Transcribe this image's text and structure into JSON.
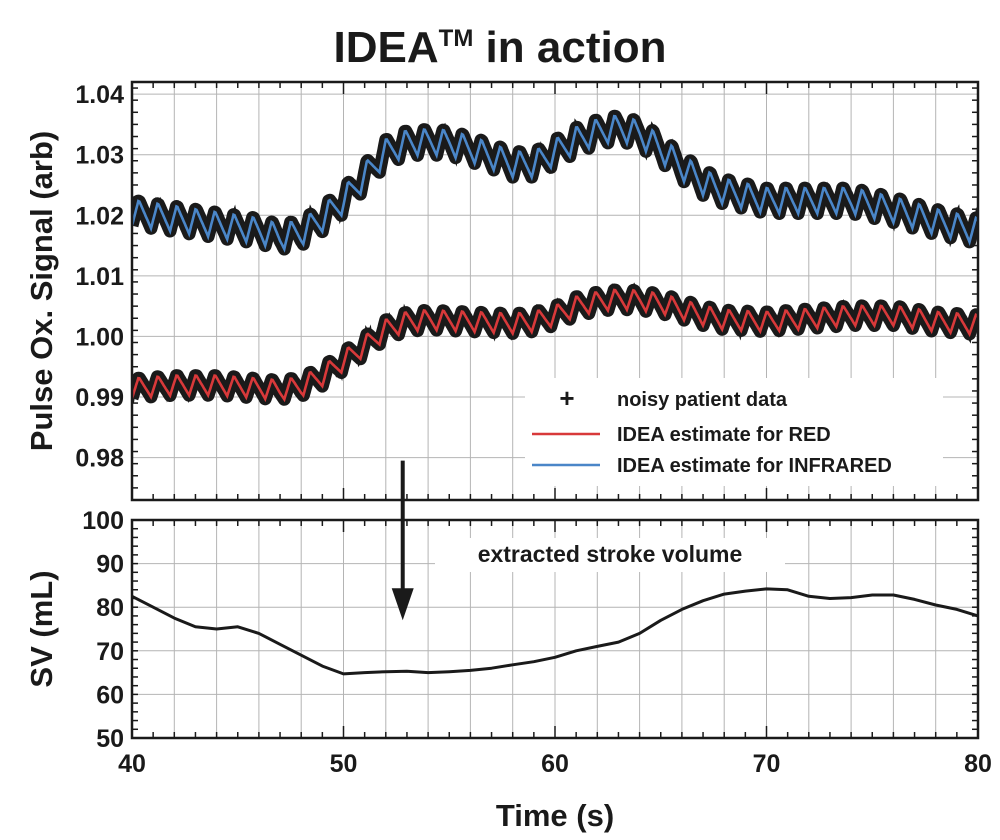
{
  "chart_data": [
    {
      "id": "pulse-ox",
      "type": "line",
      "title": "IDEA",
      "title_superscript": "TM",
      "title_suffix": " in action",
      "xlabel": "",
      "ylabel": "Pulse Ox. Signal (arb)",
      "xlim": [
        40,
        80
      ],
      "ylim": [
        0.973,
        1.042
      ],
      "yticks": [
        0.98,
        0.99,
        1.0,
        1.01,
        1.02,
        1.03,
        1.04
      ],
      "ytick_labels": [
        "0.98",
        "0.99",
        "1.00",
        "1.01",
        "1.02",
        "1.03",
        "1.04"
      ],
      "grid": true,
      "legend_position": "lower-right",
      "series": [
        {
          "name": "IDEA estimate for INFRARED",
          "color": "#4a86c8",
          "baseline": {
            "x": [
              40,
              42,
              44,
              46,
              47,
              48,
              49,
              50,
              51,
              52,
              53,
              54,
              55,
              56,
              57,
              58,
              59,
              60,
              61,
              62,
              63,
              64,
              65,
              66,
              67,
              68,
              70,
              72,
              74,
              76,
              78,
              80
            ],
            "y": [
              1.0205,
              1.0195,
              1.0185,
              1.0175,
              1.0165,
              1.0172,
              1.0195,
              1.0225,
              1.0265,
              1.0305,
              1.032,
              1.0322,
              1.032,
              1.031,
              1.0298,
              1.0285,
              1.0285,
              1.0305,
              1.0325,
              1.0338,
              1.0345,
              1.0335,
              1.031,
              1.028,
              1.0255,
              1.024,
              1.0225,
              1.0225,
              1.0225,
              1.021,
              1.019,
              1.0175
            ]
          },
          "pulse_amplitude": 0.0022,
          "pulse_period_s": 0.9
        },
        {
          "name": "IDEA estimate for RED",
          "color": "#d8393a",
          "baseline": {
            "x": [
              40,
              42,
              44,
              46,
              47,
              48,
              49,
              50,
              51,
              52,
              53,
              54,
              56,
              58,
              59,
              60,
              61,
              62,
              63,
              64,
              65,
              66,
              67,
              68,
              70,
              72,
              74,
              76,
              78,
              80
            ],
            "y": 0.9915,
            "values": [
              0.9915,
              0.992,
              0.992,
              0.9915,
              0.9912,
              0.9918,
              0.9935,
              0.996,
              0.9985,
              1.0012,
              1.0025,
              1.0028,
              1.0025,
              1.0022,
              1.0025,
              1.0035,
              1.005,
              1.0058,
              1.0062,
              1.006,
              1.0055,
              1.0045,
              1.0035,
              1.0028,
              1.0025,
              1.003,
              1.0035,
              1.0035,
              1.0025,
              1.002
            ]
          },
          "pulse_amplitude": 0.0017,
          "pulse_period_s": 0.9
        },
        {
          "name": "noisy patient data",
          "marker": "+",
          "color": "#1a1a1a"
        }
      ]
    },
    {
      "id": "stroke-volume",
      "type": "line",
      "xlabel": "Time (s)",
      "ylabel": "SV (mL)",
      "xlim": [
        40,
        80
      ],
      "ylim": [
        50,
        100
      ],
      "xticks": [
        40,
        50,
        60,
        70,
        80
      ],
      "xtick_labels": [
        "40",
        "50",
        "60",
        "70",
        "80"
      ],
      "yticks": [
        50,
        60,
        70,
        80,
        90,
        100
      ],
      "ytick_labels": [
        "50",
        "60",
        "70",
        "80",
        "90",
        "100"
      ],
      "grid": true,
      "annotation": "extracted stroke volume",
      "arrow_from": {
        "x": 52.8,
        "y_data_panel": "pulse-ox",
        "y": 0.9795
      },
      "arrow_to": {
        "x": 52.8,
        "y": 77
      },
      "series": [
        {
          "name": "stroke volume",
          "color": "#1a1a1a",
          "x": [
            40,
            41,
            42,
            43,
            44,
            45,
            46,
            47,
            48,
            49,
            50,
            51,
            52,
            53,
            54,
            55,
            56,
            57,
            58,
            59,
            60,
            61,
            62,
            63,
            64,
            65,
            66,
            67,
            68,
            69,
            70,
            71,
            72,
            73,
            74,
            75,
            76,
            77,
            78,
            79,
            80
          ],
          "y": [
            82.5,
            80,
            77.5,
            75.5,
            75,
            75.5,
            74,
            71.5,
            69,
            66.5,
            64.7,
            65,
            65.2,
            65.3,
            65,
            65.2,
            65.5,
            66,
            66.8,
            67.5,
            68.5,
            70,
            71,
            72,
            74,
            77,
            79.5,
            81.5,
            83,
            83.7,
            84.2,
            84,
            82.5,
            82,
            82.2,
            82.8,
            82.8,
            81.8,
            80.5,
            79.5,
            78
          ]
        }
      ]
    }
  ]
}
